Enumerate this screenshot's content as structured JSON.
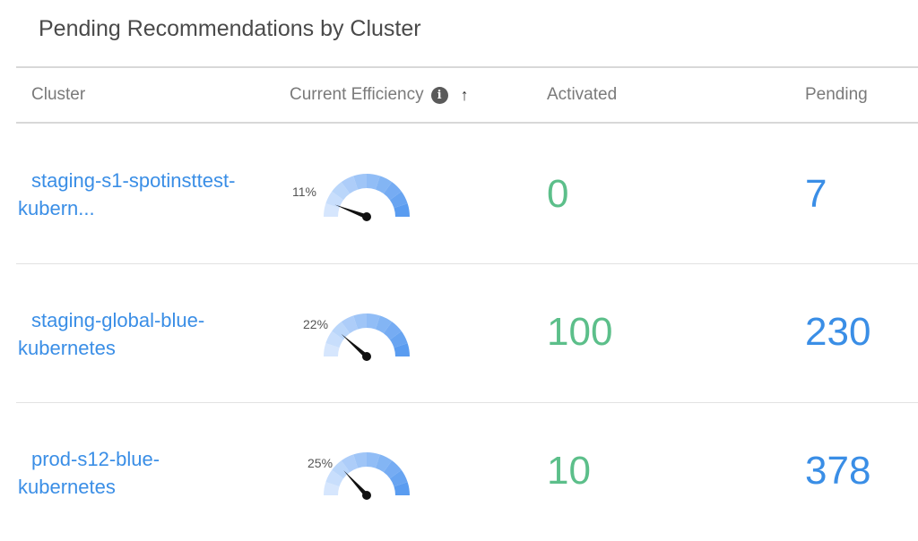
{
  "title": "Pending Recommendations by Cluster",
  "columns": {
    "cluster": "Cluster",
    "efficiency": "Current Efficiency",
    "activated": "Activated",
    "pending": "Pending"
  },
  "icons": {
    "info": "info-icon",
    "sort": "sort-ascending-arrow-icon"
  },
  "colors": {
    "activated": "#5cbf8a",
    "pending": "#3a8ee6",
    "link": "#3a8ee6"
  },
  "rows": [
    {
      "cluster_line1": "staging-s1-spotinsttest-",
      "cluster_line2": "kubern...",
      "efficiency_label": "11%",
      "efficiency": 11,
      "activated": "0",
      "pending": "7"
    },
    {
      "cluster_line1": "staging-global-blue-",
      "cluster_line2": "kubernetes",
      "efficiency_label": "22%",
      "efficiency": 22,
      "activated": "100",
      "pending": "230"
    },
    {
      "cluster_line1": "prod-s12-blue-",
      "cluster_line2": "kubernetes",
      "efficiency_label": "25%",
      "efficiency": 25,
      "activated": "10",
      "pending": "378"
    }
  ]
}
